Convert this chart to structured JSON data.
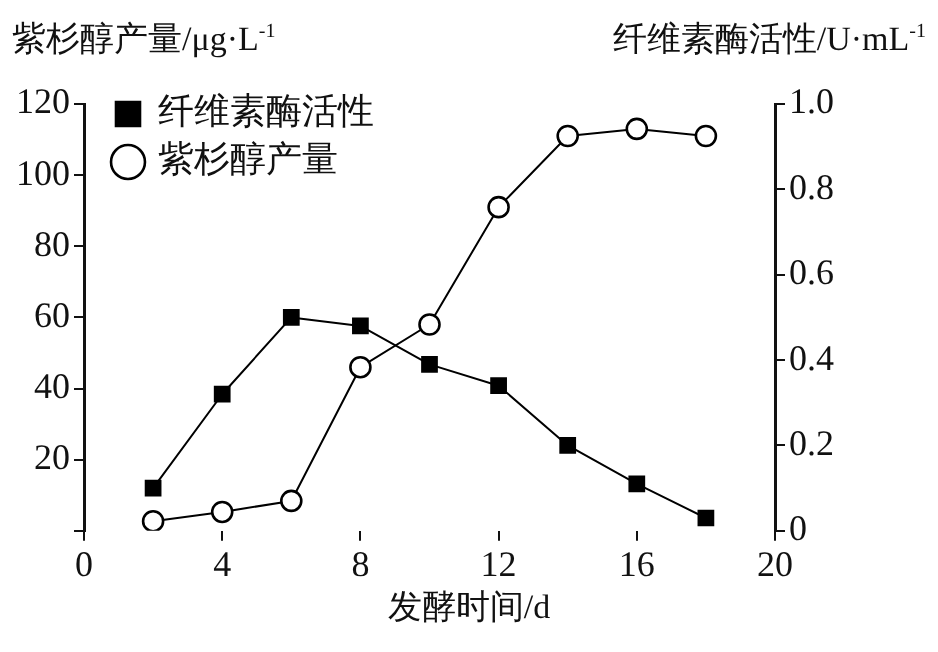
{
  "chart_data": {
    "type": "line",
    "xlabel": "发酵时间/d",
    "ylabel": "紫杉醇产量/μg·L$^{-1}$",
    "y2label": "纤维素酶活性/U·mL$^{-1}$",
    "x": [
      2,
      4,
      6,
      8,
      10,
      12,
      14,
      16,
      18
    ],
    "series": [
      {
        "name": "纤维素酶活性",
        "color": "#000000",
        "marker": "square",
        "axis": "y2",
        "values": [
          0.1,
          0.32,
          0.5,
          0.48,
          0.39,
          0.34,
          0.2,
          0.11,
          0.03
        ]
      },
      {
        "name": "紫杉醇产量",
        "color": "#000000",
        "marker": "circle",
        "values": [
          2.7,
          5.3,
          8.4,
          46,
          58,
          91,
          111,
          113,
          111
        ]
      }
    ],
    "xlim": [
      0,
      20
    ],
    "xticks": [
      0,
      4,
      8,
      12,
      16,
      20
    ],
    "ylim": [
      0,
      120
    ],
    "yticks": [
      {
        "value": 0,
        "label": null
      },
      20,
      40,
      60,
      80,
      100,
      120
    ],
    "y2lim": [
      0,
      1
    ],
    "y2ticks": [
      {
        "value": 0,
        "label": "0"
      },
      {
        "value": 0.2,
        "label": "0.2"
      },
      {
        "value": 0.4,
        "label": "0.4"
      },
      {
        "value": 0.6,
        "label": "0.6"
      },
      {
        "value": 0.8,
        "label": "0.8"
      },
      {
        "value": 1,
        "label": "1.0"
      }
    ],
    "legend": "top left",
    "grid": false,
    "line_style": "solid"
  }
}
